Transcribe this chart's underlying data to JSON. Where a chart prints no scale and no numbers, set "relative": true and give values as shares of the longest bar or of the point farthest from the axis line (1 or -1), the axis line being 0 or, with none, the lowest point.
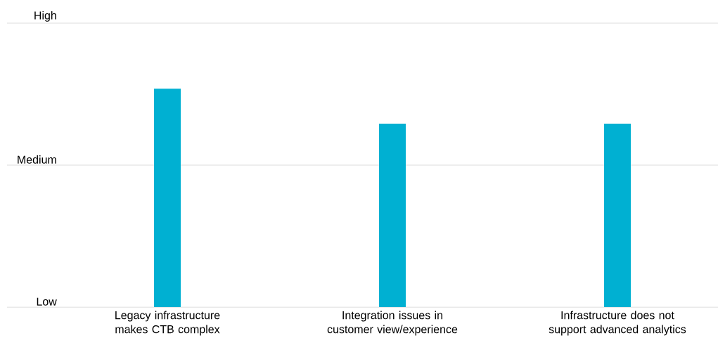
{
  "chart_data": {
    "type": "bar",
    "categories": [
      "Legacy infrastructure makes CTB complex",
      "Integration issues in customer view/experience",
      "Infrastructure does not support advanced analytics"
    ],
    "values": [
      1,
      0.84,
      0.84
    ],
    "color": "#00b0d2",
    "relative": true,
    "ref_lines": [
      {
        "axis": "y",
        "value": 0,
        "label": "Low"
      },
      {
        "axis": "y",
        "value": 0.65,
        "label": "Medium"
      },
      {
        "axis": "y",
        "value": 1.3,
        "label": "High"
      }
    ]
  }
}
